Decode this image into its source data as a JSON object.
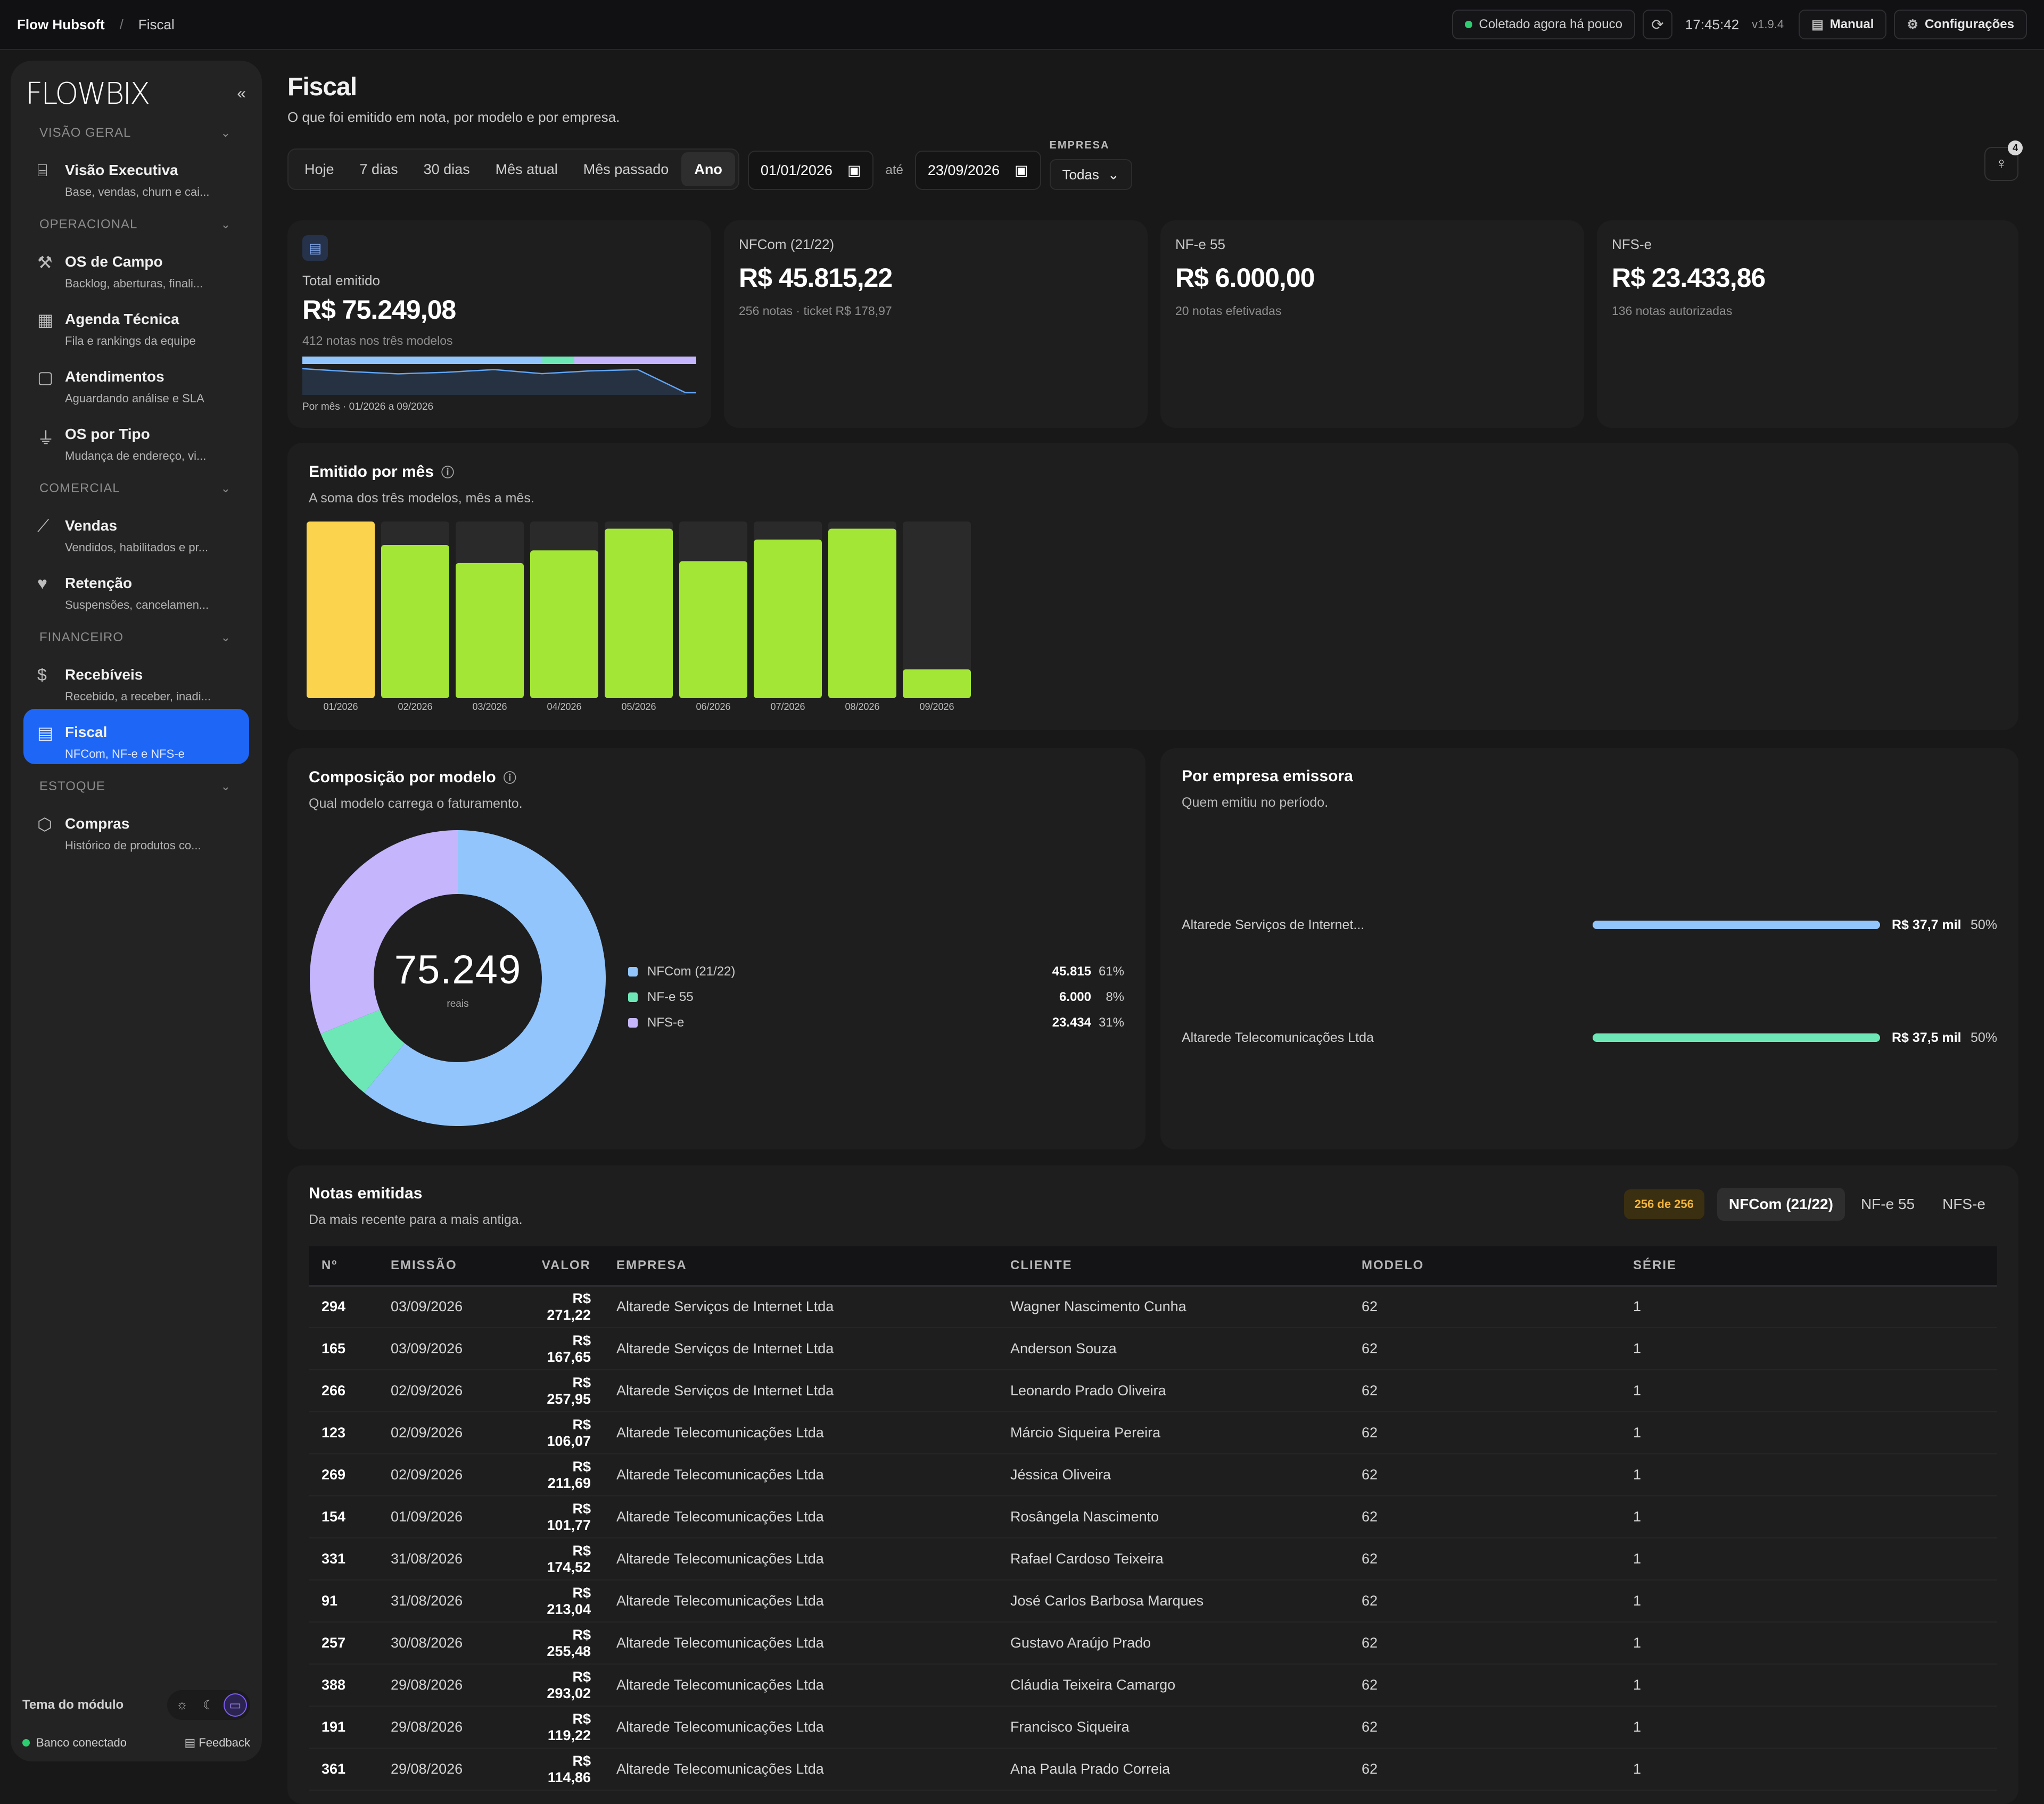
{
  "topbar": {
    "app": "Flow Hubsoft",
    "sep": "/",
    "current": "Fiscal",
    "status": "Coletado agora há pouco",
    "refresh_icon": "refresh-icon",
    "clock": "17:45:42",
    "version": "v1.9.4",
    "manual": "Manual",
    "settings": "Configurações"
  },
  "sidebar": {
    "logo": "FLOWBIX",
    "collapse": "«",
    "sections": [
      {
        "title": "VISÃO GERAL",
        "items": [
          {
            "label": "Visão Executiva",
            "sub": "Base, vendas, churn e cai...",
            "icon": "presentation-icon"
          }
        ]
      },
      {
        "title": "OPERACIONAL",
        "items": [
          {
            "label": "OS de Campo",
            "sub": "Backlog, aberturas, finali...",
            "icon": "wrench-icon"
          },
          {
            "label": "Agenda Técnica",
            "sub": "Fila e rankings da equipe",
            "icon": "calendar-icon"
          },
          {
            "label": "Atendimentos",
            "sub": "Aguardando análise e SLA",
            "icon": "message-icon"
          },
          {
            "label": "OS por Tipo",
            "sub": "Mudança de endereço, vi...",
            "icon": "filter-icon"
          }
        ]
      },
      {
        "title": "COMERCIAL",
        "items": [
          {
            "label": "Vendas",
            "sub": "Vendidos, habilitados e pr...",
            "icon": "chart-line-icon"
          },
          {
            "label": "Retenção",
            "sub": "Suspensões, cancelamen...",
            "icon": "heart-broken-icon"
          }
        ]
      },
      {
        "title": "FINANCEIRO",
        "items": [
          {
            "label": "Recebíveis",
            "sub": "Recebido, a receber, inadi...",
            "icon": "dollar-icon"
          },
          {
            "label": "Fiscal",
            "sub": "NFCom, NF-e e NFS-e",
            "icon": "document-icon"
          }
        ]
      },
      {
        "title": "ESTOQUE",
        "items": [
          {
            "label": "Compras",
            "sub": "Histórico de produtos co...",
            "icon": "box-icon"
          }
        ]
      }
    ],
    "theme_label": "Tema do módulo",
    "db_status": "Banco conectado",
    "feedback": "Feedback"
  },
  "page": {
    "title": "Fiscal",
    "subtitle": "O que foi emitido em nota, por modelo e por empresa."
  },
  "filters": {
    "periods": [
      "Hoje",
      "7 dias",
      "30 dias",
      "Mês atual",
      "Mês passado",
      "Ano"
    ],
    "active_period": "Ano",
    "date_from": "01/01/2026",
    "date_sep": "até",
    "date_to": "23/09/2026",
    "company_label": "EMPRESA",
    "company_value": "Todas",
    "insights_count": "4"
  },
  "kpis": {
    "total": {
      "label": "Total emitido",
      "value": "R$ 75.249,08",
      "sub": "412 notas nos três modelos",
      "footer": "Por mês · 01/2026 a 09/2026"
    },
    "nfcom": {
      "label": "NFCom (21/22)",
      "value": "R$ 45.815,22",
      "sub": "256 notas · ticket R$ 178,97"
    },
    "nfe": {
      "label": "NF-e 55",
      "value": "R$ 6.000,00",
      "sub": "20 notas efetivadas"
    },
    "nfse": {
      "label": "NFS-e",
      "value": "R$ 23.433,86",
      "sub": "136 notas autorizadas"
    }
  },
  "monthly": {
    "title": "Emitido por mês",
    "subtitle": "A soma dos três modelos, mês a mês."
  },
  "composition": {
    "title": "Composição por modelo",
    "subtitle": "Qual modelo carrega o faturamento.",
    "center_value": "75.249",
    "center_label": "reais",
    "legend": [
      {
        "name": "NFCom (21/22)",
        "value": "45.815",
        "pct": "61%",
        "color": "#93c5fd"
      },
      {
        "name": "NF-e 55",
        "value": "6.000",
        "pct": "8%",
        "color": "#6ee7b7"
      },
      {
        "name": "NFS-e",
        "value": "23.434",
        "pct": "31%",
        "color": "#c4b5fd"
      }
    ]
  },
  "companies": {
    "title": "Por empresa emissora",
    "subtitle": "Quem emitiu no período.",
    "rows": [
      {
        "name": "Altarede Serviços de Internet...",
        "value": "R$ 37,7 mil",
        "pct": "50%",
        "share": 0.5,
        "color": "#93c5fd"
      },
      {
        "name": "Altarede Telecomunicações Ltda",
        "value": "R$ 37,5 mil",
        "pct": "50%",
        "share": 0.5,
        "color": "#6ee7b7"
      }
    ]
  },
  "notes": {
    "title": "Notas emitidas",
    "subtitle": "Da mais recente para a mais antiga.",
    "count": "256 de 256",
    "tabs": [
      "NFCom (21/22)",
      "NF-e 55",
      "NFS-e"
    ],
    "active_tab": "NFCom (21/22)",
    "columns": [
      "Nº",
      "EMISSÃO",
      "VALOR",
      "EMPRESA",
      "CLIENTE",
      "MODELO",
      "SÉRIE"
    ],
    "rows": [
      [
        "294",
        "03/09/2026",
        "R$ 271,22",
        "Altarede Serviços de Internet Ltda",
        "Wagner Nascimento Cunha",
        "62",
        "1"
      ],
      [
        "165",
        "03/09/2026",
        "R$ 167,65",
        "Altarede Serviços de Internet Ltda",
        "Anderson Souza",
        "62",
        "1"
      ],
      [
        "266",
        "02/09/2026",
        "R$ 257,95",
        "Altarede Serviços de Internet Ltda",
        "Leonardo Prado Oliveira",
        "62",
        "1"
      ],
      [
        "123",
        "02/09/2026",
        "R$ 106,07",
        "Altarede Telecomunicações Ltda",
        "Márcio Siqueira Pereira",
        "62",
        "1"
      ],
      [
        "269",
        "02/09/2026",
        "R$ 211,69",
        "Altarede Telecomunicações Ltda",
        "Jéssica Oliveira",
        "62",
        "1"
      ],
      [
        "154",
        "01/09/2026",
        "R$ 101,77",
        "Altarede Telecomunicações Ltda",
        "Rosângela Nascimento",
        "62",
        "1"
      ],
      [
        "331",
        "31/08/2026",
        "R$ 174,52",
        "Altarede Telecomunicações Ltda",
        "Rafael Cardoso Teixeira",
        "62",
        "1"
      ],
      [
        "91",
        "31/08/2026",
        "R$ 213,04",
        "Altarede Telecomunicações Ltda",
        "José Carlos Barbosa Marques",
        "62",
        "1"
      ],
      [
        "257",
        "30/08/2026",
        "R$ 255,48",
        "Altarede Telecomunicações Ltda",
        "Gustavo Araújo Prado",
        "62",
        "1"
      ],
      [
        "388",
        "29/08/2026",
        "R$ 293,02",
        "Altarede Telecomunicações Ltda",
        "Cláudia Teixeira Camargo",
        "62",
        "1"
      ],
      [
        "191",
        "29/08/2026",
        "R$ 119,22",
        "Altarede Telecomunicações Ltda",
        "Francisco Siqueira",
        "62",
        "1"
      ],
      [
        "361",
        "29/08/2026",
        "R$ 114,86",
        "Altarede Telecomunicações Ltda",
        "Ana Paula Prado Correia",
        "62",
        "1"
      ]
    ]
  },
  "chart_data": [
    {
      "type": "bar",
      "categories": [
        "01/2026",
        "02/2026",
        "03/2026",
        "04/2026",
        "05/2026",
        "06/2026",
        "07/2026",
        "08/2026",
        "09/2026"
      ],
      "values": [
        9800,
        8500,
        7500,
        8200,
        9400,
        7600,
        8800,
        9400,
        1600
      ],
      "highlight_index": 0,
      "highlight_color": "#fcd34d",
      "bar_color": "#a3e635",
      "track_color": "#2a2a2a",
      "ylim": [
        0,
        9800
      ],
      "grid": false
    },
    {
      "type": "pie",
      "categories": [
        "NFCom (21/22)",
        "NF-e 55",
        "NFS-e"
      ],
      "values": [
        45815,
        6000,
        23434
      ],
      "colors": [
        "#93c5fd",
        "#6ee7b7",
        "#c4b5fd"
      ]
    },
    {
      "type": "line",
      "x": [
        "01/2026",
        "02/2026",
        "03/2026",
        "04/2026",
        "05/2026",
        "06/2026",
        "07/2026",
        "08/2026",
        "09/2026"
      ],
      "values": [
        9800,
        8500,
        7500,
        8200,
        9400,
        7600,
        8800,
        9400,
        1600
      ],
      "ylim": [
        0,
        50000
      ],
      "share_bar": [
        0.61,
        0.08,
        0.31
      ]
    }
  ]
}
